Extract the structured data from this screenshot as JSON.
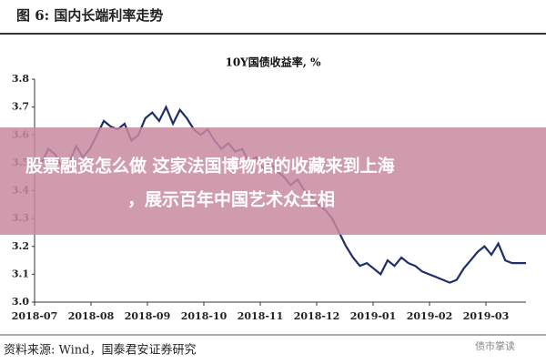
{
  "header": {
    "title": "图 6:  国内长端利率走势"
  },
  "chart_data": {
    "type": "line",
    "title": "10Y国债收益率, %",
    "xticks": [
      "2018-07",
      "2018-08",
      "2018-09",
      "2018-10",
      "2018-11",
      "2018-12",
      "2019-01",
      "2019-02",
      "2019-03"
    ],
    "series": [
      {
        "name": "10Y国债收益率",
        "color": "#1f2d6b",
        "values": [
          3.52,
          3.5,
          3.55,
          3.53,
          3.48,
          3.5,
          3.56,
          3.52,
          3.55,
          3.6,
          3.65,
          3.63,
          3.62,
          3.64,
          3.58,
          3.6,
          3.66,
          3.68,
          3.65,
          3.7,
          3.64,
          3.69,
          3.66,
          3.62,
          3.6,
          3.62,
          3.58,
          3.55,
          3.57,
          3.54,
          3.55,
          3.5,
          3.52,
          3.48,
          3.5,
          3.47,
          3.45,
          3.42,
          3.44,
          3.4,
          3.38,
          3.35,
          3.33,
          3.3,
          3.25,
          3.2,
          3.16,
          3.13,
          3.14,
          3.12,
          3.1,
          3.15,
          3.13,
          3.16,
          3.14,
          3.13,
          3.11,
          3.1,
          3.09,
          3.08,
          3.07,
          3.08,
          3.12,
          3.15,
          3.18,
          3.2,
          3.17,
          3.21,
          3.15,
          3.14,
          3.14,
          3.14
        ]
      }
    ],
    "ylim": [
      3.0,
      3.8
    ],
    "yticks": [
      {
        "value": 3,
        "label": "3.0"
      },
      3.1,
      3.2,
      3.3,
      3.4,
      3.5,
      3.6,
      3.7,
      3.8
    ]
  },
  "banner": {
    "lines": [
      "股票融资怎么做 这家法国博物馆的收藏来到上海",
      "，展示百年中国艺术众生相"
    ]
  },
  "footer": {
    "source": "资料来源:  Wind，国泰君安证券研究",
    "watermark": "债市掌读"
  }
}
